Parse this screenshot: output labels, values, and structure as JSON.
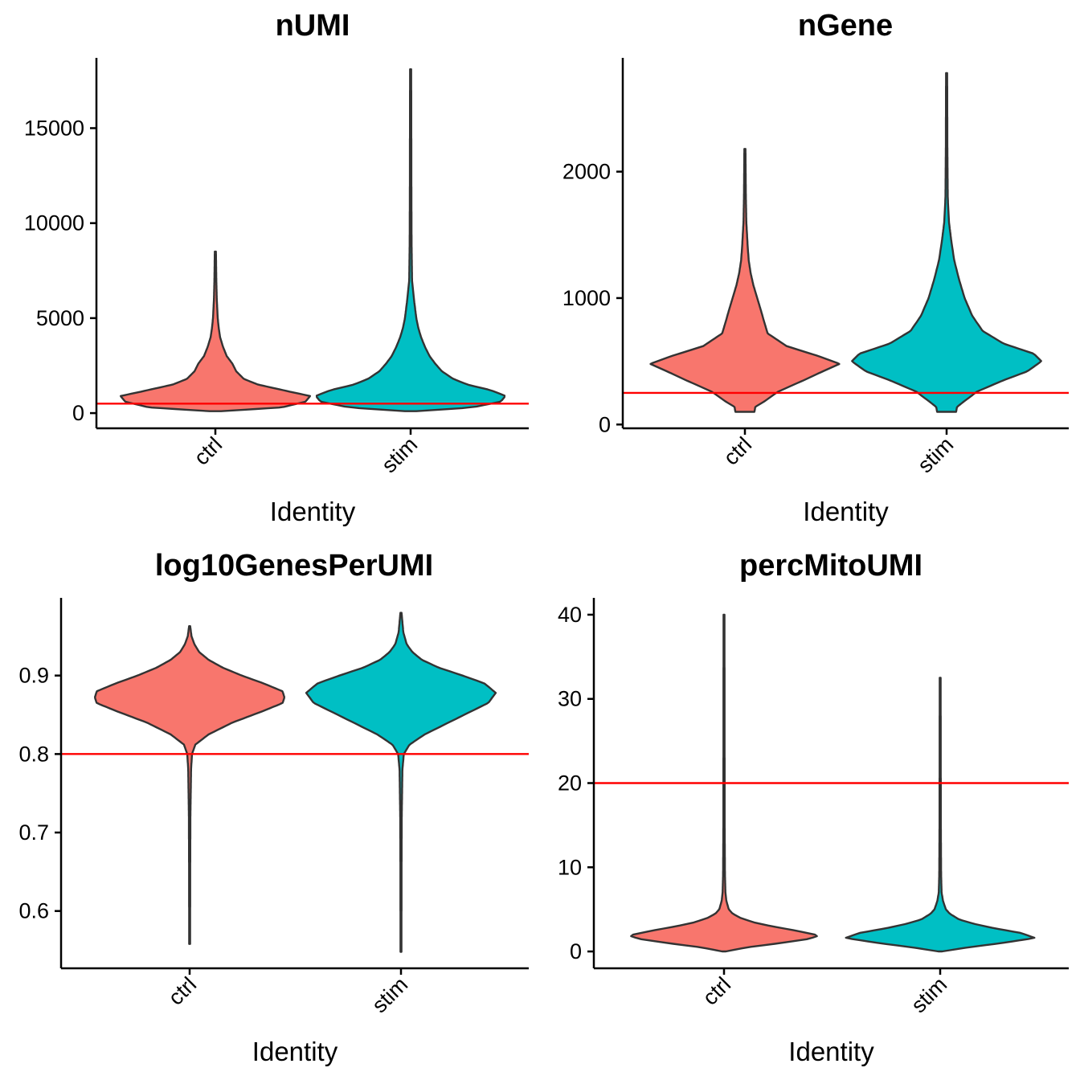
{
  "chart_data": [
    {
      "type": "violin",
      "title": "nUMI",
      "xlabel": "Identity",
      "ylabel": "",
      "categories": [
        "ctrl",
        "stim"
      ],
      "ylim": [
        -800,
        18700
      ],
      "yticks": [
        0,
        5000,
        10000,
        15000
      ],
      "ytick_labels": [
        "0",
        "5000",
        "10000",
        "15000"
      ],
      "threshold": 500,
      "colors": [
        "#F8766D",
        "#00BFC4"
      ],
      "threshold_color": "#FF0000",
      "series": [
        {
          "name": "ctrl",
          "range": [
            100,
            8500
          ],
          "density": [
            [
              100,
              0.06
            ],
            [
              300,
              0.7
            ],
            [
              600,
              0.95
            ],
            [
              900,
              1.0
            ],
            [
              1200,
              0.72
            ],
            [
              1500,
              0.45
            ],
            [
              1800,
              0.3
            ],
            [
              2200,
              0.22
            ],
            [
              2600,
              0.18
            ],
            [
              3000,
              0.12
            ],
            [
              3500,
              0.08
            ],
            [
              4000,
              0.05
            ],
            [
              4500,
              0.035
            ],
            [
              5000,
              0.025
            ],
            [
              6000,
              0.015
            ],
            [
              7000,
              0.01
            ],
            [
              8500,
              0.006
            ]
          ]
        },
        {
          "name": "stim",
          "range": [
            100,
            18100
          ],
          "density": [
            [
              100,
              0.06
            ],
            [
              300,
              0.65
            ],
            [
              600,
              0.95
            ],
            [
              900,
              1.0
            ],
            [
              1200,
              0.85
            ],
            [
              1500,
              0.6
            ],
            [
              1800,
              0.45
            ],
            [
              2200,
              0.33
            ],
            [
              2600,
              0.26
            ],
            [
              3000,
              0.2
            ],
            [
              3500,
              0.15
            ],
            [
              4000,
              0.11
            ],
            [
              4500,
              0.08
            ],
            [
              5000,
              0.06
            ],
            [
              6000,
              0.035
            ],
            [
              7000,
              0.015
            ],
            [
              9000,
              0.01
            ],
            [
              12000,
              0.008
            ],
            [
              18100,
              0.006
            ]
          ]
        }
      ]
    },
    {
      "type": "violin",
      "title": "nGene",
      "xlabel": "Identity",
      "ylabel": "",
      "categories": [
        "ctrl",
        "stim"
      ],
      "ylim": [
        -30,
        2900
      ],
      "yticks": [
        0,
        1000,
        2000
      ],
      "ytick_labels": [
        "0",
        "1000",
        "2000"
      ],
      "threshold": 250,
      "colors": [
        "#F8766D",
        "#00BFC4"
      ],
      "threshold_color": "#FF0000",
      "series": [
        {
          "name": "ctrl",
          "range": [
            100,
            2180
          ],
          "density": [
            [
              100,
              0.1
            ],
            [
              140,
              0.11
            ],
            [
              180,
              0.2
            ],
            [
              260,
              0.35
            ],
            [
              350,
              0.62
            ],
            [
              420,
              0.82
            ],
            [
              480,
              1.0
            ],
            [
              540,
              0.78
            ],
            [
              620,
              0.44
            ],
            [
              720,
              0.24
            ],
            [
              820,
              0.2
            ],
            [
              900,
              0.17
            ],
            [
              1000,
              0.13
            ],
            [
              1100,
              0.09
            ],
            [
              1200,
              0.06
            ],
            [
              1300,
              0.04
            ],
            [
              1400,
              0.03
            ],
            [
              1600,
              0.015
            ],
            [
              1800,
              0.01
            ],
            [
              2180,
              0.006
            ]
          ]
        },
        {
          "name": "stim",
          "range": [
            100,
            2780
          ],
          "density": [
            [
              100,
              0.1
            ],
            [
              140,
              0.11
            ],
            [
              180,
              0.18
            ],
            [
              260,
              0.32
            ],
            [
              350,
              0.6
            ],
            [
              420,
              0.85
            ],
            [
              500,
              1.0
            ],
            [
              560,
              0.92
            ],
            [
              640,
              0.6
            ],
            [
              740,
              0.38
            ],
            [
              860,
              0.27
            ],
            [
              1000,
              0.19
            ],
            [
              1150,
              0.13
            ],
            [
              1300,
              0.08
            ],
            [
              1450,
              0.05
            ],
            [
              1600,
              0.025
            ],
            [
              1800,
              0.012
            ],
            [
              2200,
              0.008
            ],
            [
              2780,
              0.006
            ]
          ]
        }
      ]
    },
    {
      "type": "violin",
      "title": "log10GenesPerUMI",
      "xlabel": "Identity",
      "ylabel": "",
      "categories": [
        "ctrl",
        "stim"
      ],
      "ylim": [
        0.527,
        0.999
      ],
      "yticks": [
        0.6,
        0.7,
        0.8,
        0.9
      ],
      "ytick_labels": [
        "0.6",
        "0.7",
        "0.8",
        "0.9"
      ],
      "threshold": 0.8,
      "colors": [
        "#F8766D",
        "#00BFC4"
      ],
      "threshold_color": "#FF0000",
      "series": [
        {
          "name": "ctrl",
          "range": [
            0.558,
            0.963
          ],
          "density": [
            [
              0.558,
              0.005
            ],
            [
              0.65,
              0.006
            ],
            [
              0.72,
              0.008
            ],
            [
              0.78,
              0.015
            ],
            [
              0.8,
              0.025
            ],
            [
              0.812,
              0.06
            ],
            [
              0.825,
              0.2
            ],
            [
              0.84,
              0.45
            ],
            [
              0.855,
              0.78
            ],
            [
              0.865,
              0.98
            ],
            [
              0.872,
              1.0
            ],
            [
              0.88,
              0.98
            ],
            [
              0.89,
              0.78
            ],
            [
              0.9,
              0.55
            ],
            [
              0.91,
              0.35
            ],
            [
              0.92,
              0.2
            ],
            [
              0.93,
              0.1
            ],
            [
              0.94,
              0.05
            ],
            [
              0.95,
              0.02
            ],
            [
              0.963,
              0.006
            ]
          ]
        },
        {
          "name": "stim",
          "range": [
            0.548,
            0.98
          ],
          "density": [
            [
              0.548,
              0.005
            ],
            [
              0.65,
              0.006
            ],
            [
              0.72,
              0.008
            ],
            [
              0.78,
              0.015
            ],
            [
              0.8,
              0.03
            ],
            [
              0.812,
              0.09
            ],
            [
              0.825,
              0.25
            ],
            [
              0.84,
              0.5
            ],
            [
              0.855,
              0.75
            ],
            [
              0.865,
              0.92
            ],
            [
              0.878,
              1.0
            ],
            [
              0.89,
              0.88
            ],
            [
              0.9,
              0.65
            ],
            [
              0.91,
              0.4
            ],
            [
              0.92,
              0.22
            ],
            [
              0.93,
              0.12
            ],
            [
              0.94,
              0.06
            ],
            [
              0.955,
              0.025
            ],
            [
              0.98,
              0.006
            ]
          ]
        }
      ]
    },
    {
      "type": "violin",
      "title": "percMitoUMI",
      "xlabel": "Identity",
      "ylabel": "",
      "categories": [
        "ctrl",
        "stim"
      ],
      "ylim": [
        -2,
        42
      ],
      "yticks": [
        0,
        10,
        20,
        30,
        40
      ],
      "ytick_labels": [
        "0",
        "10",
        "20",
        "30",
        "40"
      ],
      "threshold": 20,
      "colors": [
        "#F8766D",
        "#00BFC4"
      ],
      "threshold_color": "#FF0000",
      "series": [
        {
          "name": "ctrl",
          "range": [
            0,
            40
          ],
          "density": [
            [
              0,
              0.02
            ],
            [
              0.5,
              0.25
            ],
            [
              1.0,
              0.6
            ],
            [
              1.5,
              0.9
            ],
            [
              1.9,
              1.0
            ],
            [
              2.5,
              0.75
            ],
            [
              3.0,
              0.5
            ],
            [
              3.5,
              0.3
            ],
            [
              4.0,
              0.17
            ],
            [
              4.5,
              0.09
            ],
            [
              5.0,
              0.05
            ],
            [
              6.0,
              0.025
            ],
            [
              7.0,
              0.015
            ],
            [
              9.0,
              0.01
            ],
            [
              15.0,
              0.007
            ],
            [
              40.0,
              0.005
            ]
          ]
        },
        {
          "name": "stim",
          "range": [
            0,
            32.5
          ],
          "density": [
            [
              0,
              0.02
            ],
            [
              0.5,
              0.3
            ],
            [
              1.0,
              0.65
            ],
            [
              1.6,
              1.0
            ],
            [
              2.2,
              0.85
            ],
            [
              2.8,
              0.55
            ],
            [
              3.3,
              0.35
            ],
            [
              3.8,
              0.2
            ],
            [
              4.5,
              0.1
            ],
            [
              5.0,
              0.06
            ],
            [
              6.0,
              0.03
            ],
            [
              7.0,
              0.015
            ],
            [
              9.0,
              0.01
            ],
            [
              15.0,
              0.007
            ],
            [
              32.5,
              0.005
            ]
          ]
        }
      ]
    }
  ]
}
